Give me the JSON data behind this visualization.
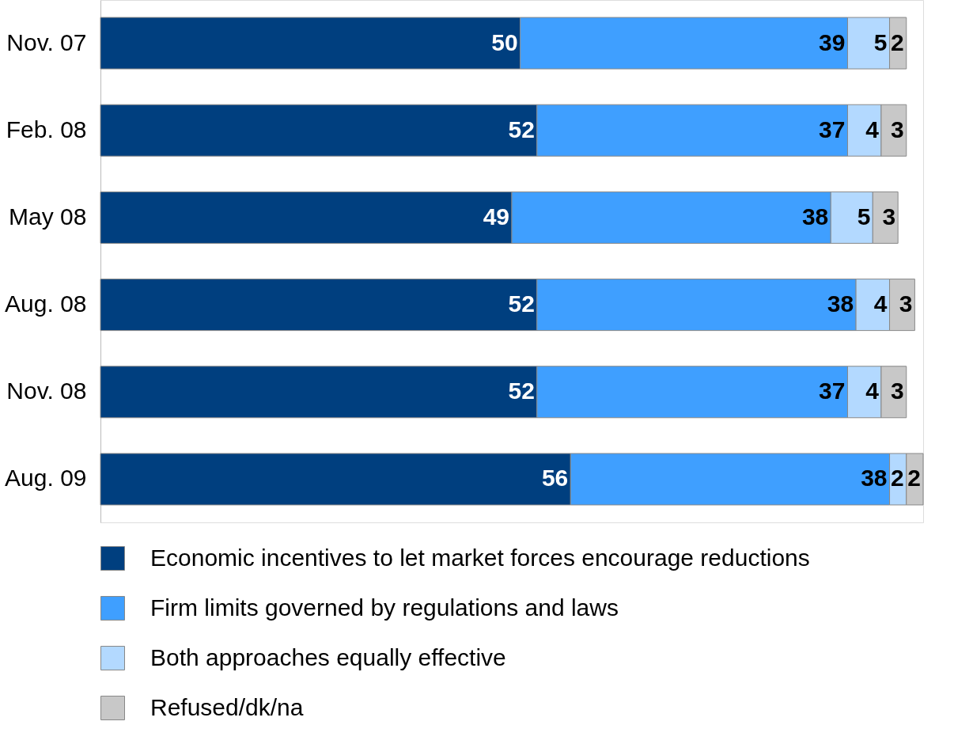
{
  "chart_data": {
    "type": "bar",
    "orientation": "horizontal",
    "stacked": true,
    "data_labels": true,
    "tick_labels": "y",
    "grid": false,
    "legend": "bottom",
    "categories": [
      "Nov. 07",
      "Feb. 08",
      "May 08",
      "Aug. 08",
      "Nov. 08",
      "Aug. 09"
    ],
    "xlim": [
      0,
      98
    ],
    "series": [
      {
        "name": "Economic incentives to let market forces encourage reductions",
        "color": "#003f7f",
        "values": [
          50,
          52,
          49,
          52,
          52,
          56
        ]
      },
      {
        "name": "Firm limits governed by regulations and laws",
        "color": "#3f9fff",
        "values": [
          39,
          37,
          38,
          38,
          37,
          38
        ]
      },
      {
        "name": "Both approaches equally effective",
        "color": "#b3d9ff",
        "values": [
          5,
          4,
          5,
          4,
          4,
          2
        ]
      },
      {
        "name": "Refused/dk/na",
        "color": "#c8c8c8",
        "values": [
          2,
          3,
          3,
          3,
          3,
          2
        ]
      }
    ]
  }
}
